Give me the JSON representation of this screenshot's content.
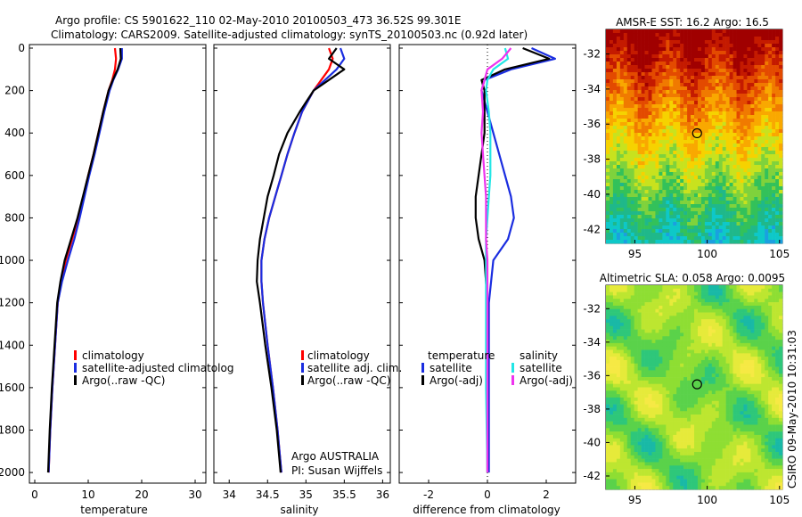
{
  "header": {
    "line1": "Argo profile: CS 5901622_110 02-May-2010 20100503_473 36.52S 99.301E",
    "line2": "Climatology: CARS2009. Satellite-adjusted climatology: synTS_20100503.nc (0.92d later)"
  },
  "credit": {
    "line1": "Argo AUSTRALIA",
    "line2": "PI: Susan Wijffels"
  },
  "side_label": "CSIRO 09-May-2010 10:31:03",
  "colors": {
    "red": "#ff0000",
    "blue": "#1a2de0",
    "black": "#000000",
    "cyan": "#22e6e6",
    "magenta": "#ee33ee"
  },
  "chart_data": [
    {
      "type": "line",
      "xlabel": "temperature",
      "ylabel": "",
      "xlim": [
        -1,
        32
      ],
      "ylim": [
        2050,
        0
      ],
      "xticks": [
        0,
        10,
        20,
        30
      ],
      "yticks": [
        0,
        200,
        400,
        600,
        800,
        1000,
        1200,
        1400,
        1600,
        1800,
        2000
      ],
      "legend": [
        "climatology",
        "satellite-adjusted climatolog",
        "Argo(..raw -QC)"
      ],
      "legend_colors": [
        "#ff0000",
        "#1a2de0",
        "#000000"
      ],
      "series": [
        {
          "name": "climatology",
          "color": "#ff0000",
          "x": [
            15.0,
            15.2,
            15.0,
            14.5,
            13.8,
            12.8,
            11.9,
            11.0,
            10.0,
            9.1,
            8.1,
            7.0,
            5.8,
            5.0,
            4.3,
            3.8,
            3.3,
            2.9,
            2.6
          ],
          "y": [
            0,
            50,
            100,
            150,
            200,
            300,
            400,
            500,
            600,
            700,
            800,
            900,
            1000,
            1100,
            1200,
            1400,
            1600,
            1800,
            2000
          ]
        },
        {
          "name": "satellite-adjusted climatolog",
          "color": "#1a2de0",
          "x": [
            16.3,
            16.3,
            15.6,
            14.7,
            14.0,
            13.0,
            12.1,
            11.2,
            10.2,
            9.3,
            8.4,
            7.4,
            6.2,
            5.1,
            4.3,
            3.8,
            3.3,
            2.9,
            2.6
          ],
          "y": [
            0,
            50,
            100,
            150,
            200,
            300,
            400,
            500,
            600,
            700,
            800,
            900,
            1000,
            1100,
            1200,
            1400,
            1600,
            1800,
            2000
          ]
        },
        {
          "name": "Argo(..raw -QC)",
          "color": "#000000",
          "x": [
            16.0,
            16.1,
            15.5,
            14.6,
            13.8,
            12.8,
            11.9,
            11.0,
            10.0,
            9.0,
            8.0,
            6.8,
            5.6,
            4.8,
            4.2,
            3.7,
            3.2,
            2.8,
            2.5
          ],
          "y": [
            0,
            50,
            100,
            150,
            200,
            300,
            400,
            500,
            600,
            700,
            800,
            900,
            1000,
            1100,
            1200,
            1400,
            1600,
            1800,
            2000
          ]
        }
      ]
    },
    {
      "type": "line",
      "xlabel": "salinity",
      "ylabel": "",
      "xlim": [
        33.8,
        36.1
      ],
      "ylim": [
        2050,
        0
      ],
      "xticks": [
        34,
        34.5,
        35,
        35.5,
        36
      ],
      "xtick_labels": [
        "34",
        "34.5",
        "35",
        "35.5",
        "36"
      ],
      "legend": [
        "climatology",
        "satellite adj. clim.",
        "Argo(..raw -QC)"
      ],
      "legend_colors": [
        "#ff0000",
        "#1a2de0",
        "#000000"
      ],
      "series": [
        {
          "name": "climatology",
          "color": "#ff0000",
          "x": [
            35.3,
            35.35,
            35.3,
            35.2,
            35.1,
            34.95,
            34.85,
            34.76,
            34.68,
            34.6,
            34.52,
            34.46,
            34.42,
            34.42,
            34.44,
            34.5,
            34.57,
            34.63,
            34.68
          ],
          "y": [
            0,
            50,
            100,
            150,
            200,
            300,
            400,
            500,
            600,
            700,
            800,
            900,
            1000,
            1100,
            1200,
            1400,
            1600,
            1800,
            2000
          ]
        },
        {
          "name": "satellite adj. clim.",
          "color": "#1a2de0",
          "x": [
            35.45,
            35.5,
            35.4,
            35.25,
            35.1,
            34.95,
            34.85,
            34.76,
            34.68,
            34.6,
            34.52,
            34.46,
            34.42,
            34.42,
            34.44,
            34.5,
            34.57,
            34.63,
            34.68
          ],
          "y": [
            0,
            50,
            100,
            150,
            200,
            300,
            400,
            500,
            600,
            700,
            800,
            900,
            1000,
            1100,
            1200,
            1400,
            1600,
            1800,
            2000
          ]
        },
        {
          "name": "Argo(..raw -QC)",
          "color": "#000000",
          "x": [
            35.4,
            35.3,
            35.5,
            35.3,
            35.1,
            34.92,
            34.76,
            34.65,
            34.58,
            34.5,
            34.45,
            34.4,
            34.37,
            34.36,
            34.4,
            34.47,
            34.55,
            34.62,
            34.67
          ],
          "y": [
            0,
            50,
            100,
            150,
            200,
            300,
            400,
            500,
            600,
            700,
            800,
            900,
            1000,
            1100,
            1200,
            1400,
            1600,
            1800,
            2000
          ]
        }
      ]
    },
    {
      "type": "line",
      "xlabel": "difference from climatology",
      "ylabel": "",
      "xlim": [
        -3,
        3
      ],
      "ylim": [
        2050,
        0
      ],
      "xticks": [
        -2,
        0,
        2
      ],
      "legend_groups": [
        {
          "title": "temperature",
          "items": [
            "satellite",
            "Argo(-adj)"
          ],
          "colors": [
            "#1a2de0",
            "#000000"
          ]
        },
        {
          "title": "salinity",
          "items": [
            "satellite",
            "Argo(-adj)"
          ],
          "colors": [
            "#22e6e6",
            "#ee33ee"
          ]
        }
      ],
      "series": [
        {
          "name": "satellite",
          "color": "#1a2de0",
          "x": [
            1.5,
            2.3,
            0.8,
            -0.1,
            -0.2,
            0.0,
            0.2,
            0.4,
            0.6,
            0.8,
            0.9,
            0.7,
            0.2,
            0.05,
            0.05,
            0.05
          ],
          "y": [
            0,
            50,
            100,
            150,
            200,
            300,
            400,
            500,
            600,
            700,
            800,
            900,
            1000,
            1200,
            1600,
            2000
          ]
        },
        {
          "name": "Argo(-adj)",
          "color": "#000000",
          "x": [
            1.2,
            2.1,
            0.6,
            -0.2,
            -0.1,
            -0.1,
            -0.1,
            -0.2,
            -0.3,
            -0.4,
            -0.4,
            -0.3,
            -0.1,
            0.0,
            0.0,
            0.0
          ],
          "y": [
            0,
            50,
            100,
            150,
            200,
            300,
            400,
            500,
            600,
            700,
            800,
            900,
            1000,
            1200,
            1600,
            2000
          ]
        },
        {
          "name": "satellite",
          "color": "#22e6e6",
          "x": [
            0.6,
            0.7,
            0.2,
            0.0,
            -0.05,
            0.05,
            0.1,
            0.1,
            0.1,
            0.05,
            0.0,
            -0.05,
            -0.05,
            -0.05,
            -0.05,
            0.0
          ],
          "y": [
            0,
            50,
            100,
            150,
            200,
            300,
            400,
            500,
            600,
            700,
            800,
            900,
            1000,
            1200,
            1600,
            2000
          ]
        },
        {
          "name": "Argo(-adj)",
          "color": "#ee33ee",
          "x": [
            0.8,
            0.5,
            0.0,
            -0.1,
            -0.2,
            -0.15,
            -0.2,
            -0.15,
            -0.1,
            -0.05,
            -0.05,
            -0.05,
            0.0,
            0.0,
            0.0,
            0.0
          ],
          "y": [
            0,
            50,
            100,
            150,
            200,
            300,
            400,
            500,
            600,
            700,
            800,
            900,
            1000,
            1200,
            1600,
            2000
          ]
        }
      ]
    },
    {
      "type": "heatmap",
      "title": "AMSR-E SST: 16.2 Argo: 16.5",
      "xlim": [
        93,
        105.2
      ],
      "ylim": [
        -42.8,
        -30.6
      ],
      "xticks": [
        95,
        100,
        105
      ],
      "yticks": [
        -32,
        -34,
        -36,
        -38,
        -40,
        -42
      ],
      "marker": {
        "lon": 99.301,
        "lat": -36.52
      }
    },
    {
      "type": "heatmap",
      "title": "Altimetric SLA: 0.058 Argo: 0.0095",
      "xlim": [
        93,
        105.2
      ],
      "ylim": [
        -42.8,
        -30.6
      ],
      "xticks": [
        95,
        100,
        105
      ],
      "yticks": [
        -32,
        -34,
        -36,
        -38,
        -40,
        -42
      ],
      "marker": {
        "lon": 99.301,
        "lat": -36.52
      }
    }
  ]
}
